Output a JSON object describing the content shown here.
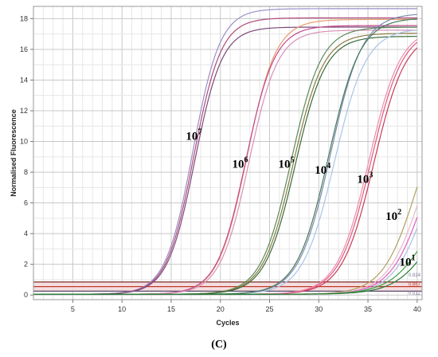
{
  "chart_data": {
    "type": "line",
    "title": "",
    "xlabel": "Cycles",
    "ylabel": "Normalised Fluorescence",
    "xlim": [
      1,
      40.5
    ],
    "ylim": [
      -0.3,
      18.8
    ],
    "xticks": [
      5,
      10,
      15,
      20,
      25,
      30,
      35,
      40
    ],
    "yticks": [
      0,
      2,
      4,
      6,
      8,
      10,
      12,
      14,
      16,
      18
    ],
    "grid": true,
    "threshold_band": [
      0.25,
      0.85
    ],
    "threshold_labels": [
      "0.824",
      "0.667",
      "0.512"
    ],
    "annotations": [
      {
        "base": "10",
        "exp": "7",
        "x": 17.3,
        "y": 10.1
      },
      {
        "base": "10",
        "exp": "6",
        "x": 22.0,
        "y": 8.3
      },
      {
        "base": "10",
        "exp": "5",
        "x": 26.7,
        "y": 8.3
      },
      {
        "base": "10",
        "exp": "4",
        "x": 30.4,
        "y": 7.9
      },
      {
        "base": "10",
        "exp": "3",
        "x": 34.7,
        "y": 7.3
      },
      {
        "base": "10",
        "exp": "2",
        "x": 37.6,
        "y": 4.9
      },
      {
        "base": "10",
        "exp": "1",
        "x": 39.0,
        "y": 1.9
      }
    ],
    "series": [
      {
        "color": "#9b8fc9",
        "max": 18.6,
        "mid": 17.2,
        "k": 0.72,
        "base": 0.05
      },
      {
        "color": "#b04a78",
        "max": 18.0,
        "mid": 17.3,
        "k": 0.72,
        "base": 0.05
      },
      {
        "color": "#7a4a7a",
        "max": 17.4,
        "mid": 17.4,
        "k": 0.72,
        "base": 0.05
      },
      {
        "color": "#e89a6a",
        "max": 17.9,
        "mid": 22.7,
        "k": 0.68,
        "base": 0.05
      },
      {
        "color": "#c04a8a",
        "max": 17.5,
        "mid": 22.6,
        "k": 0.68,
        "base": 0.05
      },
      {
        "color": "#d890b8",
        "max": 17.2,
        "mid": 22.9,
        "k": 0.68,
        "base": 0.05
      },
      {
        "color": "#5a8a5a",
        "max": 17.4,
        "mid": 27.2,
        "k": 0.65,
        "base": 0.05
      },
      {
        "color": "#8a7a40",
        "max": 17.0,
        "mid": 27.4,
        "k": 0.65,
        "base": 0.05
      },
      {
        "color": "#3a6a3a",
        "max": 16.8,
        "mid": 27.6,
        "k": 0.65,
        "base": 0.05
      },
      {
        "color": "#7a8ab0",
        "max": 18.3,
        "mid": 31.2,
        "k": 0.62,
        "base": 0.05
      },
      {
        "color": "#a8c4e8",
        "max": 17.3,
        "mid": 31.6,
        "k": 0.62,
        "base": 0.05
      },
      {
        "color": "#4a7a5a",
        "max": 18.0,
        "mid": 31.0,
        "k": 0.62,
        "base": 0.05
      },
      {
        "color": "#e05a78",
        "max": 17.3,
        "mid": 35.3,
        "k": 0.62,
        "base": 0.05
      },
      {
        "color": "#c83a5a",
        "max": 17.1,
        "mid": 35.6,
        "k": 0.62,
        "base": 0.05
      },
      {
        "color": "#f08ab0",
        "max": 17.4,
        "mid": 35.1,
        "k": 0.62,
        "base": 0.05
      },
      {
        "color": "#b0a060",
        "max": 14.0,
        "mid": 40.0,
        "k": 0.58,
        "base": 0.05
      },
      {
        "color": "#e8b8c8",
        "max": 13.5,
        "mid": 40.5,
        "k": 0.58,
        "base": 0.05
      },
      {
        "color": "#e060c0",
        "max": 13.0,
        "mid": 40.8,
        "k": 0.58,
        "base": 0.05
      },
      {
        "color": "#a8c0e0",
        "max": 12.5,
        "mid": 41.1,
        "k": 0.58,
        "base": 0.05
      },
      {
        "color": "#40a040",
        "max": 8.0,
        "mid": 41.2,
        "k": 0.52,
        "base": 0.05
      },
      {
        "color": "#2a7a3a",
        "max": 7.5,
        "mid": 41.8,
        "k": 0.52,
        "base": 0.05
      }
    ]
  },
  "panel_label": "(C)"
}
